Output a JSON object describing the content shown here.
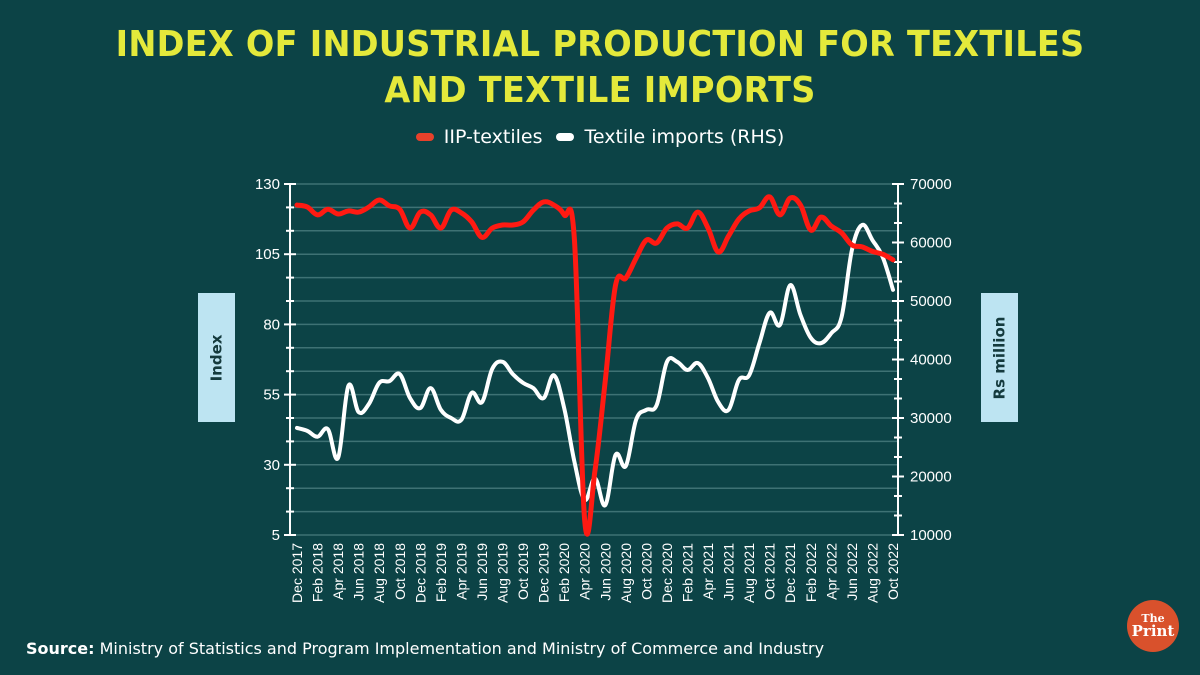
{
  "chart_data": {
    "type": "line",
    "title": "INDEX OF INDUSTRIAL PRODUCTION FOR TEXTILES AND TEXTILE IMPORTS",
    "title_lines": [
      "INDEX OF INDUSTRIAL PRODUCTION FOR TEXTILES",
      "AND TEXTILE IMPORTS"
    ],
    "xlabel": "",
    "ylabel": "Index",
    "y2label": "Rs million",
    "ylim": [
      5,
      130
    ],
    "y2lim": [
      10000,
      70000
    ],
    "y_ticks": [
      130,
      105,
      80,
      55,
      30,
      5
    ],
    "y2_ticks": [
      70000,
      60000,
      50000,
      40000,
      30000,
      20000,
      10000
    ],
    "grid": true,
    "legend_position": "top-center",
    "x": [
      "Dec 2017",
      "Jan 2018",
      "Feb 2018",
      "Mar 2018",
      "Apr 2018",
      "May 2018",
      "Jun 2018",
      "Jul 2018",
      "Aug 2018",
      "Sep 2018",
      "Oct 2018",
      "Nov 2018",
      "Dec 2018",
      "Jan 2019",
      "Feb 2019",
      "Mar 2019",
      "Apr 2019",
      "May 2019",
      "Jun 2019",
      "Jul 2019",
      "Aug 2019",
      "Sep 2019",
      "Oct 2019",
      "Nov 2019",
      "Dec 2019",
      "Jan 2020",
      "Feb 2020",
      "Mar 2020",
      "Apr 2020",
      "May 2020",
      "Jun 2020",
      "Jul 2020",
      "Aug 2020",
      "Sep 2020",
      "Oct 2020",
      "Nov 2020",
      "Dec 2020",
      "Jan 2021",
      "Feb 2021",
      "Mar 2021",
      "Apr 2021",
      "May 2021",
      "Jun 2021",
      "Jul 2021",
      "Aug 2021",
      "Sep 2021",
      "Oct 2021",
      "Nov 2021",
      "Dec 2021",
      "Jan 2022",
      "Feb 2022",
      "Mar 2022",
      "Apr 2022",
      "May 2022",
      "Jun 2022",
      "Jul 2022",
      "Aug 2022",
      "Sep 2022",
      "Oct 2022"
    ],
    "x_tick_labels": [
      "Dec 2017",
      "Feb 2018",
      "Apr 2018",
      "Jun 2018",
      "Aug 2018",
      "Oct 2018",
      "Dec 2018",
      "Feb 2019",
      "Apr 2019",
      "Jun 2019",
      "Aug 2019",
      "Oct 2019",
      "Dec 2019",
      "Feb 2020",
      "Apr 2020",
      "Jun 2020",
      "Aug 2020",
      "Oct 2020",
      "Dec 2020",
      "Feb 2021",
      "Apr 2021",
      "Jun 2021",
      "Aug 2021",
      "Oct 2021",
      "Dec 2021",
      "Feb 2022",
      "Apr 2022",
      "Jun 2022",
      "Aug 2022",
      "Oct 2022"
    ],
    "series": [
      {
        "name": "IIP-textiles",
        "axis": "left",
        "color": "#ff1a12",
        "values": [
          122.5,
          121.8,
          119,
          121,
          119.3,
          120.4,
          120,
          121.8,
          124.3,
          122.2,
          121,
          114.3,
          120,
          119,
          114.3,
          120.7,
          119.7,
          116.5,
          111,
          114.3,
          115.4,
          115.4,
          116.5,
          120.7,
          123.6,
          122.5,
          119,
          110,
          10,
          28,
          60,
          94,
          96.5,
          103.6,
          110,
          109,
          114.3,
          115.8,
          114.3,
          120,
          114.3,
          105.8,
          111.5,
          117.5,
          120.4,
          121.5,
          125.4,
          119,
          125,
          122.5,
          113.6,
          118.2,
          115,
          112.6,
          108.3,
          107.6,
          106,
          105,
          103
        ]
      },
      {
        "name": "Textile imports (RHS)",
        "axis": "right",
        "color": "#ffffff",
        "values": [
          28300,
          27800,
          26800,
          28100,
          23200,
          35500,
          31000,
          32400,
          36000,
          36300,
          37500,
          33400,
          31700,
          35100,
          31400,
          30000,
          29700,
          34300,
          32700,
          38400,
          39600,
          37500,
          36000,
          35100,
          33400,
          37300,
          31700,
          22500,
          16000,
          19700,
          15100,
          23700,
          21800,
          29700,
          31400,
          32200,
          39600,
          39600,
          38200,
          39400,
          36800,
          32700,
          31400,
          36500,
          37300,
          42800,
          48000,
          45900,
          52700,
          47600,
          43700,
          42800,
          44500,
          47300,
          58700,
          63000,
          60400,
          57500,
          51900
        ]
      }
    ]
  },
  "legend": {
    "items": [
      {
        "label": "IIP-textiles",
        "color": "#e8412b"
      },
      {
        "label": "Textile imports (RHS)",
        "color": "#ffffff"
      }
    ]
  },
  "axis_titles": {
    "left": "Index",
    "right": "Rs million"
  },
  "source": {
    "label": "Source:",
    "text": " Ministry of Statistics and Program Implementation and Ministry of Commerce and Industry"
  },
  "logo": {
    "line1": "The",
    "line2": "Print"
  },
  "colors": {
    "background": "#0c4346",
    "title": "#e4e93b",
    "grid": "#4f8284",
    "axis": "#ffffff",
    "label_box": "#bde4f2"
  }
}
